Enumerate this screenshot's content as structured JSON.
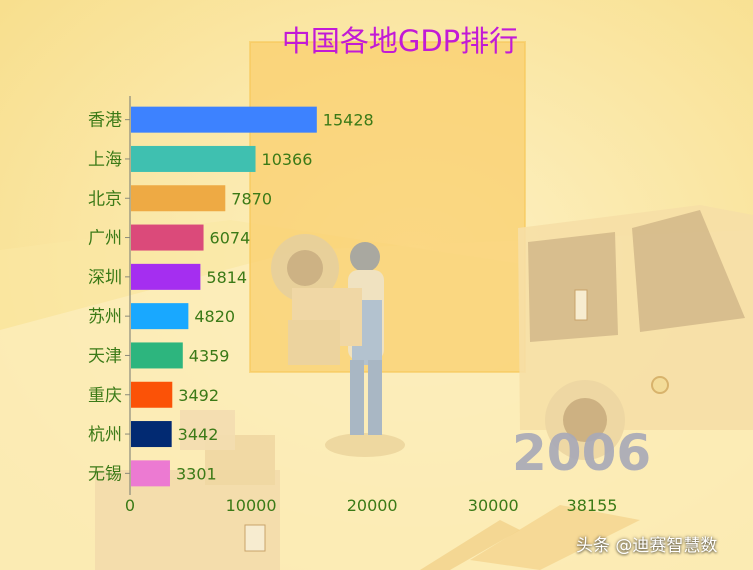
{
  "chart_data": {
    "type": "bar",
    "orientation": "horizontal",
    "title": "中国各地GDP排行",
    "categories": [
      "香港",
      "上海",
      "北京",
      "广州",
      "深圳",
      "苏州",
      "天津",
      "重庆",
      "杭州",
      "无锡"
    ],
    "values": [
      15428,
      10366,
      7870,
      6074,
      5814,
      4820,
      4359,
      3492,
      3442,
      3301
    ],
    "colors": [
      "#3d82ff",
      "#3fc0b0",
      "#eeaa44",
      "#db4a7a",
      "#a52ef0",
      "#19a8ff",
      "#2db57e",
      "#fb5207",
      "#022a72",
      "#ec7ad2"
    ],
    "x_ticks": [
      0,
      10000,
      20000,
      30000,
      38155
    ],
    "xlim": [
      0,
      38155
    ],
    "grid": false,
    "label_color": "#3b7a17",
    "title_color": "#c21ad6"
  },
  "year_label": "2006",
  "watermark": "头条 @迪赛智慧数"
}
